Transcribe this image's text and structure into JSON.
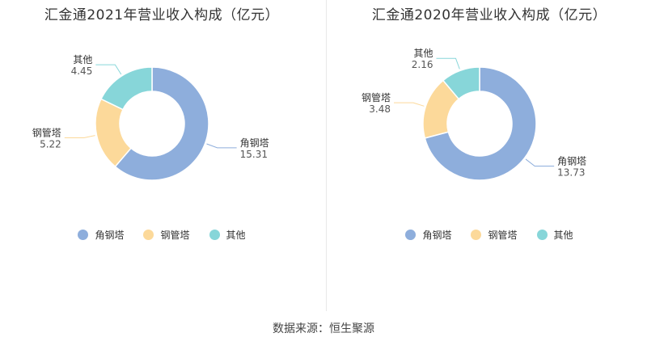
{
  "source": "数据来源：恒生聚源",
  "chart_data": [
    {
      "type": "pie",
      "title": "汇金通2021年营业收入构成（亿元）",
      "categories": [
        "角钢塔",
        "钢管塔",
        "其他"
      ],
      "values": [
        15.31,
        5.22,
        4.45
      ],
      "value_labels": [
        "15.31",
        "5.22",
        "4.45"
      ],
      "colors": [
        "#8eaedc",
        "#fcd99a",
        "#87d6d9"
      ],
      "legend": "bottom"
    },
    {
      "type": "pie",
      "title": "汇金通2020年营业收入构成（亿元）",
      "categories": [
        "角钢塔",
        "钢管塔",
        "其他"
      ],
      "values": [
        13.73,
        3.48,
        2.16
      ],
      "value_labels": [
        "13.73",
        "3.48",
        "2.16"
      ],
      "colors": [
        "#8eaedc",
        "#fcd99a",
        "#87d6d9"
      ],
      "legend": "bottom"
    }
  ]
}
